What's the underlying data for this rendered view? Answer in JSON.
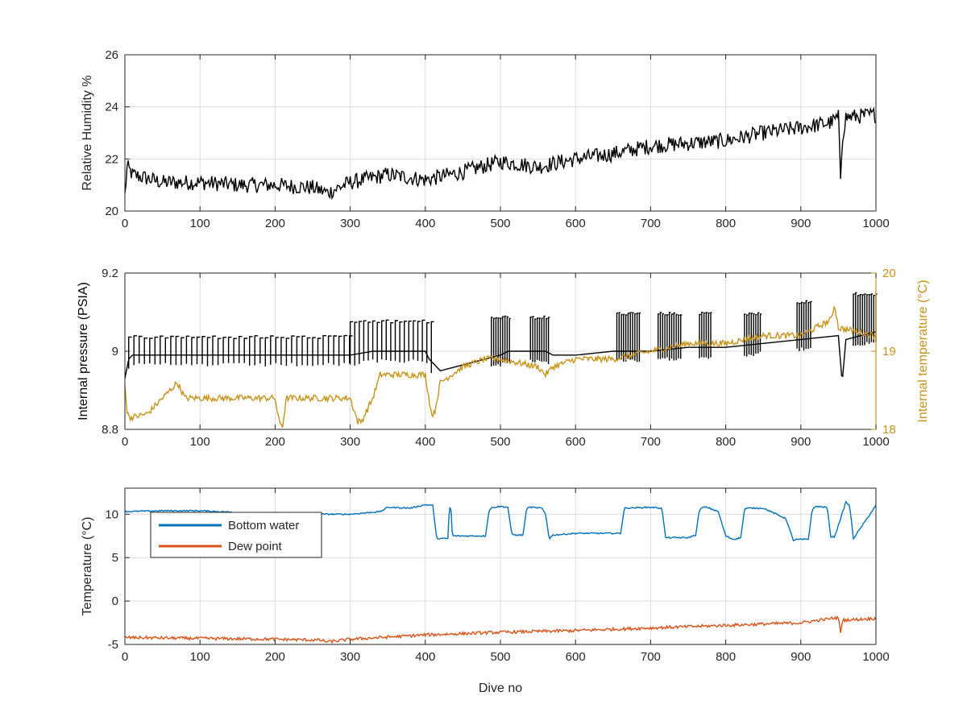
{
  "chart_data": [
    {
      "id": "humidity",
      "type": "line",
      "xlim": [
        0,
        1000
      ],
      "ylim": [
        20,
        26
      ],
      "xticks": [
        "0",
        "100",
        "200",
        "300",
        "400",
        "500",
        "600",
        "700",
        "800",
        "900",
        "1000"
      ],
      "yticks": [
        "20",
        "22",
        "24",
        "26"
      ],
      "xlabel": "",
      "ylabel": "Relative Humidity %",
      "grid": true,
      "series": [
        {
          "color": "#000000",
          "noise": 0.6,
          "x": [
            0,
            3,
            10,
            50,
            100,
            150,
            200,
            250,
            270,
            300,
            350,
            400,
            450,
            500,
            550,
            600,
            650,
            700,
            750,
            800,
            850,
            900,
            940,
            950,
            953,
            955,
            960,
            1000
          ],
          "y": [
            20.6,
            21.7,
            21.4,
            21.1,
            21.1,
            21.0,
            21.0,
            20.9,
            20.7,
            21.1,
            21.4,
            21.2,
            21.5,
            21.9,
            21.7,
            22.0,
            22.2,
            22.5,
            22.6,
            22.7,
            23.0,
            23.2,
            23.4,
            23.6,
            21.2,
            22.8,
            23.6,
            23.7
          ]
        }
      ]
    },
    {
      "id": "pressure-temperature",
      "type": "line",
      "xlim": [
        0,
        1000
      ],
      "ylim": [
        8.8,
        9.2
      ],
      "y2lim": [
        18,
        20
      ],
      "xticks": [
        "0",
        "100",
        "200",
        "300",
        "400",
        "500",
        "600",
        "700",
        "800",
        "900",
        "1000"
      ],
      "yticks": [
        "8.8",
        "9",
        "9.2"
      ],
      "y2ticks": [
        "18",
        "19",
        "20"
      ],
      "xlabel": "",
      "ylabel": "Internal pressure (PSIA)",
      "y2label": "Internal temperature (°C)",
      "grid": true,
      "series": [
        {
          "axis": "left",
          "color": "#000000",
          "x": [
            0,
            5,
            10,
            100,
            200,
            300,
            330,
            345,
            400,
            405,
            420,
            500,
            510,
            520,
            560,
            570,
            600,
            650,
            700,
            750,
            800,
            850,
            900,
            950,
            955,
            960,
            1000
          ],
          "y": [
            8.93,
            8.98,
            8.99,
            8.99,
            8.99,
            8.99,
            9.0,
            9.0,
            9.0,
            8.98,
            8.95,
            8.99,
            9.0,
            9.0,
            9.0,
            8.99,
            8.99,
            9.0,
            9.0,
            9.01,
            9.01,
            9.02,
            9.03,
            9.04,
            8.92,
            9.03,
            9.05
          ],
          "spikes": [
            {
              "x0": 5,
              "x1": 300,
              "high": 9.04,
              "period": 7
            },
            {
              "x0": 300,
              "x1": 410,
              "high": 9.08,
              "period": 6
            },
            {
              "x0": 488,
              "x1": 512,
              "high": 9.09,
              "period": 3
            },
            {
              "x0": 540,
              "x1": 565,
              "high": 9.09,
              "period": 3
            },
            {
              "x0": 655,
              "x1": 685,
              "high": 9.1,
              "period": 3
            },
            {
              "x0": 710,
              "x1": 740,
              "high": 9.1,
              "period": 3
            },
            {
              "x0": 765,
              "x1": 780,
              "high": 9.1,
              "period": 3
            },
            {
              "x0": 825,
              "x1": 848,
              "high": 9.1,
              "period": 3
            },
            {
              "x0": 895,
              "x1": 915,
              "high": 9.13,
              "period": 3
            },
            {
              "x0": 970,
              "x1": 1000,
              "high": 9.15,
              "period": 3
            }
          ]
        },
        {
          "axis": "right",
          "color": "#c8931b",
          "x": [
            0,
            3,
            8,
            30,
            60,
            70,
            80,
            100,
            200,
            205,
            210,
            215,
            260,
            300,
            310,
            315,
            330,
            340,
            400,
            408,
            412,
            420,
            450,
            480,
            500,
            550,
            560,
            570,
            600,
            650,
            700,
            750,
            800,
            850,
            900,
            940,
            945,
            950,
            1000
          ],
          "y": [
            18.6,
            18.2,
            18.15,
            18.2,
            18.5,
            18.6,
            18.4,
            18.4,
            18.4,
            18.1,
            18.05,
            18.4,
            18.4,
            18.4,
            18.1,
            18.1,
            18.4,
            18.7,
            18.7,
            18.2,
            18.2,
            18.6,
            18.8,
            18.9,
            18.9,
            18.8,
            18.7,
            18.8,
            18.9,
            18.9,
            19.0,
            19.1,
            19.1,
            19.2,
            19.2,
            19.4,
            19.6,
            19.3,
            19.2
          ],
          "noise": 0.08
        }
      ]
    },
    {
      "id": "temperature",
      "type": "line",
      "xlim": [
        0,
        1000
      ],
      "ylim": [
        -5,
        13
      ],
      "xticks": [
        "0",
        "100",
        "200",
        "300",
        "400",
        "500",
        "600",
        "700",
        "800",
        "900",
        "1000"
      ],
      "yticks": [
        "-5",
        "0",
        "5",
        "10"
      ],
      "xlabel": "Dive no",
      "ylabel": "Temperature (°C)",
      "grid": true,
      "legend": {
        "position": "top-left",
        "entries": [
          "Bottom water",
          "Dew point"
        ]
      },
      "series": [
        {
          "name": "Bottom water",
          "color": "#0072bd",
          "x": [
            0,
            50,
            100,
            200,
            300,
            340,
            350,
            380,
            400,
            410,
            415,
            430,
            432,
            434,
            436,
            480,
            485,
            490,
            500,
            510,
            515,
            520,
            530,
            535,
            540,
            555,
            560,
            565,
            570,
            600,
            650,
            660,
            665,
            700,
            715,
            720,
            725,
            750,
            760,
            765,
            770,
            775,
            790,
            800,
            810,
            820,
            825,
            830,
            850,
            880,
            890,
            895,
            910,
            915,
            920,
            935,
            940,
            945,
            960,
            965,
            970,
            1000
          ],
          "y": [
            10.3,
            10.4,
            10.4,
            10.0,
            10.0,
            10.3,
            10.8,
            10.7,
            11.1,
            11.0,
            7.2,
            7.2,
            10.8,
            10.8,
            7.5,
            7.5,
            10.5,
            10.8,
            10.9,
            10.8,
            7.7,
            7.6,
            7.6,
            10.7,
            10.8,
            10.7,
            10.0,
            7.2,
            7.6,
            7.8,
            7.8,
            7.8,
            10.7,
            10.8,
            10.7,
            7.3,
            7.3,
            7.3,
            7.6,
            10.5,
            10.8,
            10.8,
            10.3,
            7.5,
            7.1,
            7.3,
            10.6,
            10.7,
            10.7,
            9.5,
            7.0,
            7.1,
            7.1,
            10.5,
            10.9,
            10.8,
            7.4,
            7.4,
            11.4,
            11.0,
            7.2,
            11.0
          ],
          "noise": 0.15
        },
        {
          "name": "Dew point",
          "color": "#d95319",
          "x": [
            0,
            100,
            200,
            260,
            270,
            300,
            400,
            500,
            600,
            700,
            800,
            900,
            950,
            953,
            956,
            1000
          ],
          "y": [
            -4.2,
            -4.3,
            -4.4,
            -4.5,
            -4.7,
            -4.4,
            -3.9,
            -3.6,
            -3.4,
            -3.1,
            -2.8,
            -2.5,
            -1.9,
            -3.6,
            -2.2,
            -2.0
          ],
          "noise": 0.35
        }
      ]
    }
  ]
}
